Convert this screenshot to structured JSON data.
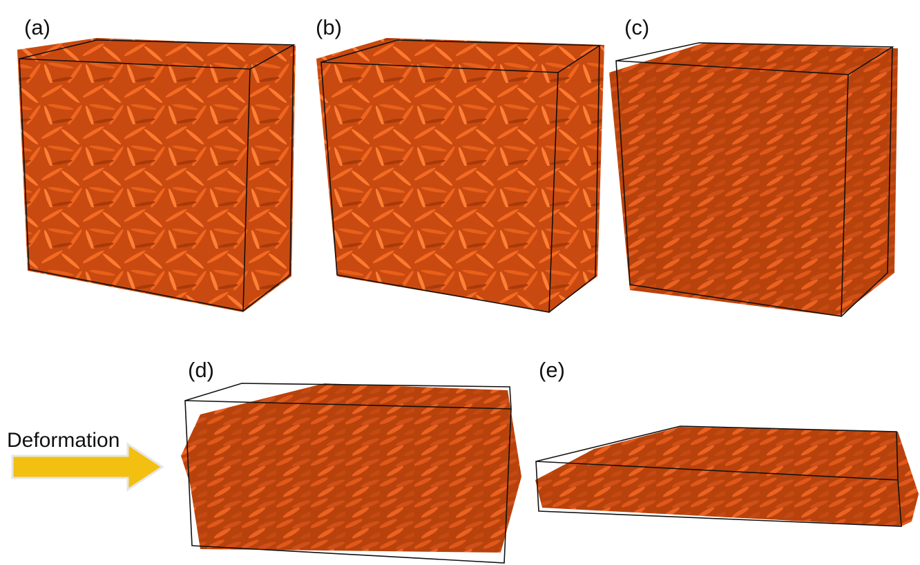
{
  "panels": [
    {
      "label": "(a)"
    },
    {
      "label": "(b)"
    },
    {
      "label": "(c)"
    },
    {
      "label": "(d)"
    },
    {
      "label": "(e)"
    }
  ],
  "arrow": {
    "label": "Deformation"
  }
}
